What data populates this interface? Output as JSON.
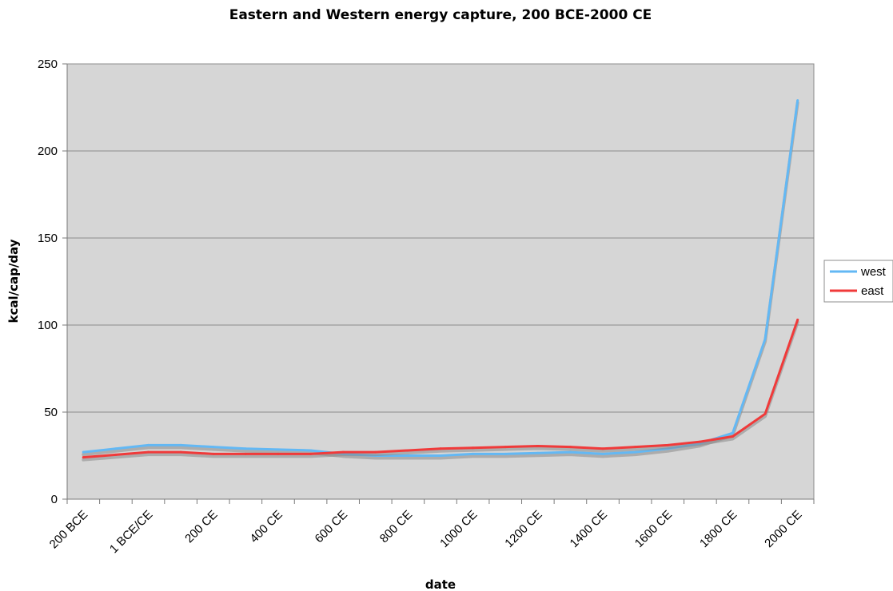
{
  "chart_data": {
    "type": "line",
    "title": "Eastern and Western energy capture, 200 BCE-2000 CE",
    "xlabel": "date",
    "ylabel": "kcal/cap/day",
    "ylim": [
      0,
      250
    ],
    "yticks": [
      0,
      50,
      100,
      150,
      200,
      250
    ],
    "xticks": [
      "200 BCE",
      "1 BCE/CE",
      "200 CE",
      "400 CE",
      "600 CE",
      "800 CE",
      "1000 CE",
      "1200 CE",
      "1400 CE",
      "1600 CE",
      "1800 CE",
      "2000 CE"
    ],
    "x": [
      "150 BCE",
      "50 BCE",
      "50 CE",
      "150 CE",
      "250 CE",
      "350 CE",
      "450 CE",
      "550 CE",
      "650 CE",
      "750 CE",
      "850 CE",
      "950 CE",
      "1050 CE",
      "1150 CE",
      "1250 CE",
      "1350 CE",
      "1450 CE",
      "1550 CE",
      "1650 CE",
      "1750 CE",
      "1850 CE",
      "1950 CE",
      "2050 CE"
    ],
    "grid": true,
    "legend": "right",
    "series": [
      {
        "name": "west",
        "color": "#63b8f4",
        "values": [
          27,
          29,
          31,
          31,
          30,
          29,
          28.5,
          28,
          26,
          25,
          25,
          25,
          26,
          26,
          26.5,
          27,
          26,
          27,
          29,
          32,
          38,
          92,
          229
        ]
      },
      {
        "name": "east",
        "color": "#f03a3a",
        "values": [
          24,
          25.5,
          27,
          27,
          26,
          26,
          26,
          26,
          27,
          27,
          28,
          29,
          29.5,
          30,
          30.5,
          30,
          29,
          30,
          31,
          33,
          36,
          49,
          103
        ]
      }
    ]
  }
}
